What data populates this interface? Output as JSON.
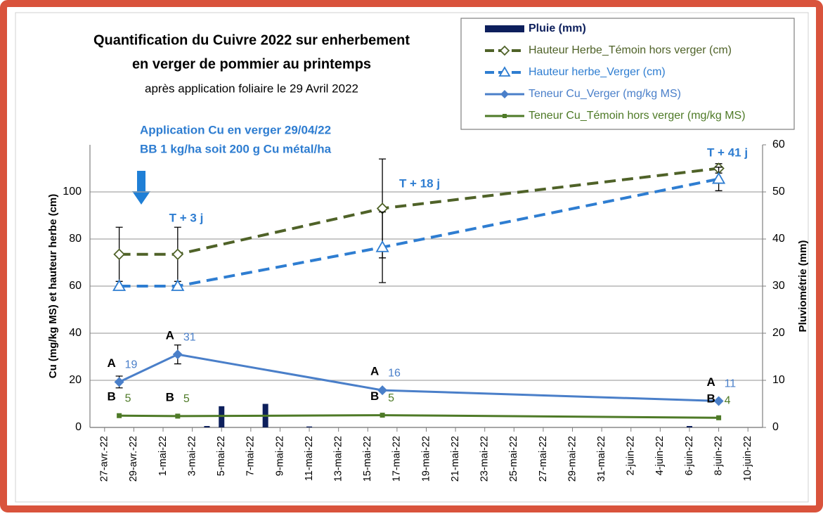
{
  "chart_data": {
    "type": "combo",
    "title": "Quantification du Cuivre 2022 sur enherbement",
    "title_line2": "en verger de pommier au printemps",
    "subtitle": "après application foliaire le 29 Avril 2022",
    "ylabel": "Cu (mg/kg MS) et hauteur herbe (cm)",
    "y2label": "Pluviométrie (mm)",
    "annotations": [
      "Application Cu en verger 29/04/22",
      "BB 1 kg/ha soit 200 g Cu métal/ha",
      "T + 3 j",
      "T + 18 j",
      "T + 41 j"
    ],
    "xlim": [
      "2022-04-26",
      "2022-06-11"
    ],
    "xticks": [
      {
        "value": "2022-04-27",
        "label": "27-avr.-22"
      },
      {
        "value": "2022-04-29",
        "label": "29-avr.-22"
      },
      {
        "value": "2022-05-01",
        "label": "1-mai-22"
      },
      {
        "value": "2022-05-03",
        "label": "3-mai-22"
      },
      {
        "value": "2022-05-05",
        "label": "5-mai-22"
      },
      {
        "value": "2022-05-07",
        "label": "7-mai-22"
      },
      {
        "value": "2022-05-09",
        "label": "9-mai-22"
      },
      {
        "value": "2022-05-11",
        "label": "11-mai-22"
      },
      {
        "value": "2022-05-13",
        "label": "13-mai-22"
      },
      {
        "value": "2022-05-15",
        "label": "15-mai-22"
      },
      {
        "value": "2022-05-17",
        "label": "17-mai-22"
      },
      {
        "value": "2022-05-19",
        "label": "19-mai-22"
      },
      {
        "value": "2022-05-21",
        "label": "21-mai-22"
      },
      {
        "value": "2022-05-23",
        "label": "23-mai-22"
      },
      {
        "value": "2022-05-25",
        "label": "25-mai-22"
      },
      {
        "value": "2022-05-27",
        "label": "27-mai-22"
      },
      {
        "value": "2022-05-29",
        "label": "29-mai-22"
      },
      {
        "value": "2022-05-31",
        "label": "31-mai-22"
      },
      {
        "value": "2022-06-02",
        "label": "2-juin-22"
      },
      {
        "value": "2022-06-04",
        "label": "4-juin-22"
      },
      {
        "value": "2022-06-06",
        "label": "6-juin-22"
      },
      {
        "value": "2022-06-08",
        "label": "8-juin-22"
      },
      {
        "value": "2022-06-10",
        "label": "10-juin-22"
      }
    ],
    "ylim": [
      0,
      120
    ],
    "yticks": [
      0,
      20,
      40,
      60,
      80,
      100
    ],
    "y2lim": [
      0,
      60
    ],
    "y2ticks": [
      0,
      10,
      20,
      30,
      40,
      50,
      60
    ],
    "grid": true,
    "series": [
      {
        "name": "Pluie (mm)",
        "type": "bar",
        "axis": "y2",
        "color": "#0d1f5c",
        "x": [
          "2022-05-04",
          "2022-05-05",
          "2022-05-08",
          "2022-05-11",
          "2022-06-06"
        ],
        "values": [
          0.3,
          4.5,
          5,
          0.2,
          0.3
        ]
      },
      {
        "name": "Hauteur Herbe_Témoin hors verger (cm)",
        "type": "line",
        "style": "dashed",
        "marker": "diamond-open",
        "color": "#4f6228",
        "x": [
          "2022-04-28",
          "2022-05-02",
          "2022-05-16",
          "2022-06-08"
        ],
        "values": [
          73.5,
          73.5,
          93,
          110
        ],
        "errors": [
          11.5,
          11.5,
          21,
          2
        ]
      },
      {
        "name": "Hauteur herbe_Verger (cm)",
        "type": "line",
        "style": "dashed",
        "marker": "triangle-open",
        "color": "#2e7dd1",
        "x": [
          "2022-04-28",
          "2022-05-02",
          "2022-05-16",
          "2022-06-08"
        ],
        "values": [
          60,
          60,
          76.5,
          105.5
        ],
        "errors": [
          null,
          null,
          15,
          5
        ]
      },
      {
        "name": "Teneur Cu_Verger (mg/kg MS)",
        "type": "line",
        "style": "solid",
        "marker": "diamond",
        "color": "#4a7fc9",
        "x": [
          "2022-04-28",
          "2022-05-02",
          "2022-05-16",
          "2022-06-08"
        ],
        "values": [
          19.3,
          31,
          15.8,
          11.2
        ],
        "value_labels": [
          "19",
          "31",
          "16",
          "11"
        ],
        "letters": [
          "A",
          "A",
          "A",
          "A"
        ],
        "errors": [
          2.5,
          4,
          null,
          null
        ]
      },
      {
        "name": "Teneur Cu_Témoin hors verger  (mg/kg MS)",
        "type": "line",
        "style": "solid",
        "marker": "square",
        "color": "#4e7a27",
        "x": [
          "2022-04-28",
          "2022-05-02",
          "2022-05-16",
          "2022-06-08"
        ],
        "values": [
          5,
          4.8,
          5.2,
          4.1
        ],
        "value_labels": [
          "5",
          "5",
          "5",
          "4"
        ],
        "letters": [
          "B",
          "B",
          "B",
          "B"
        ]
      }
    ]
  }
}
